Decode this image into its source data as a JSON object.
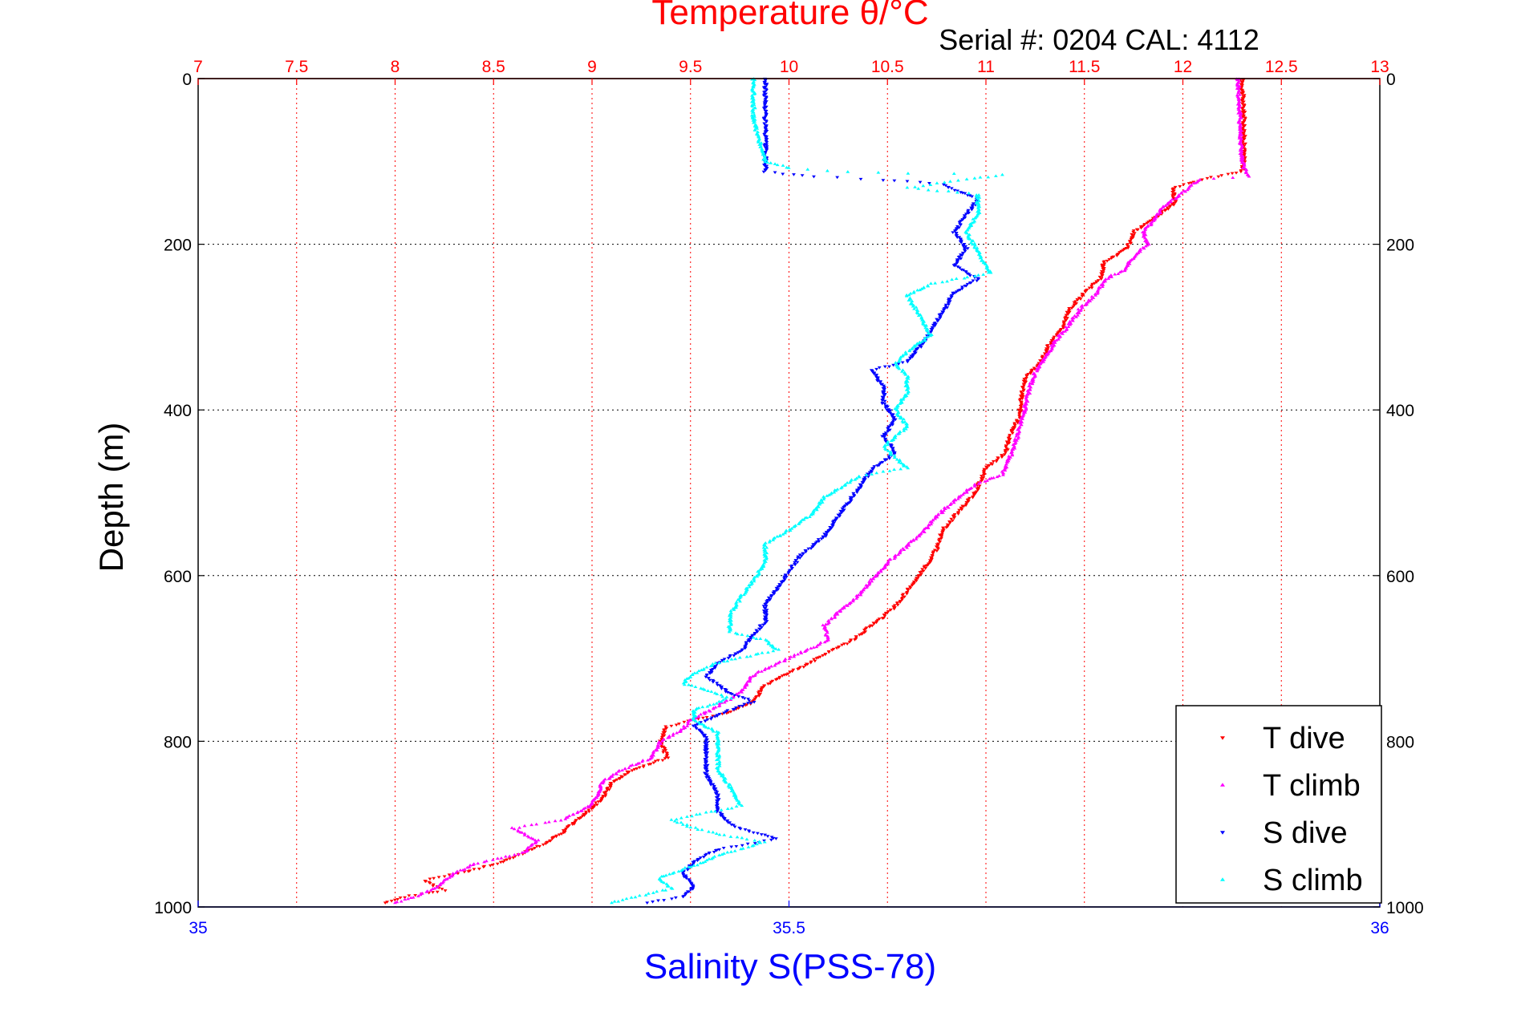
{
  "chart_data": {
    "type": "scatter",
    "title_top": "Temperature θ/°C",
    "subtitle": "Serial #: 0204  CAL: 4112",
    "xlabel_bottom": "Salinity S(PSS-78)",
    "ylabel": "Depth (m)",
    "x_top": {
      "label": "Temperature θ/°C",
      "lim": [
        7,
        13
      ],
      "ticks": [
        7,
        7.5,
        8,
        8.5,
        9,
        9.5,
        10,
        10.5,
        11,
        11.5,
        12,
        12.5,
        13
      ],
      "tick_labels": [
        "7",
        "7.5",
        "8",
        "8.5",
        "9",
        "9.5",
        "10",
        "10.5",
        "11",
        "11.5",
        "12",
        "12.5",
        "13"
      ]
    },
    "x_bottom": {
      "label": "Salinity S(PSS-78)",
      "lim": [
        35,
        36
      ],
      "ticks": [
        35,
        35.5,
        36
      ],
      "tick_labels": [
        "35",
        "35.5",
        "36"
      ]
    },
    "y": {
      "label": "Depth (m)",
      "lim": [
        0,
        1000
      ],
      "reversed": true,
      "ticks": [
        0,
        200,
        400,
        600,
        800,
        1000
      ],
      "tick_labels": [
        "0",
        "200",
        "400",
        "600",
        "800",
        "1000"
      ]
    },
    "grid": true,
    "legend_position": "bottom-right",
    "series": [
      {
        "name": "T dive",
        "color": "#ff0000",
        "axis": "temperature",
        "marker": "down-triangle",
        "points": [
          [
            12.3,
            0
          ],
          [
            12.31,
            50
          ],
          [
            12.31,
            100
          ],
          [
            12.3,
            112
          ],
          [
            12.1,
            122
          ],
          [
            11.95,
            132
          ],
          [
            11.96,
            150
          ],
          [
            11.85,
            170
          ],
          [
            11.75,
            185
          ],
          [
            11.72,
            205
          ],
          [
            11.6,
            222
          ],
          [
            11.58,
            242
          ],
          [
            11.5,
            258
          ],
          [
            11.42,
            280
          ],
          [
            11.38,
            305
          ],
          [
            11.32,
            322
          ],
          [
            11.28,
            342
          ],
          [
            11.2,
            362
          ],
          [
            11.18,
            385
          ],
          [
            11.17,
            408
          ],
          [
            11.12,
            432
          ],
          [
            11.1,
            452
          ],
          [
            11.0,
            470
          ],
          [
            10.95,
            498
          ],
          [
            10.88,
            518
          ],
          [
            10.78,
            545
          ],
          [
            10.75,
            568
          ],
          [
            10.7,
            588
          ],
          [
            10.62,
            612
          ],
          [
            10.55,
            635
          ],
          [
            10.45,
            655
          ],
          [
            10.32,
            678
          ],
          [
            10.18,
            695
          ],
          [
            10.05,
            712
          ],
          [
            9.88,
            732
          ],
          [
            9.82,
            752
          ],
          [
            9.7,
            765
          ],
          [
            9.38,
            782
          ],
          [
            9.35,
            800
          ],
          [
            9.38,
            820
          ],
          [
            9.2,
            835
          ],
          [
            9.1,
            850
          ],
          [
            9.05,
            870
          ],
          [
            8.95,
            890
          ],
          [
            8.85,
            910
          ],
          [
            8.75,
            925
          ],
          [
            8.55,
            945
          ],
          [
            8.35,
            958
          ],
          [
            8.15,
            968
          ],
          [
            8.25,
            980
          ],
          [
            8.05,
            988
          ],
          [
            7.95,
            995
          ]
        ]
      },
      {
        "name": "T climb",
        "color": "#ff00ff",
        "axis": "temperature",
        "marker": "up-triangle",
        "points": [
          [
            12.28,
            0
          ],
          [
            12.29,
            50
          ],
          [
            12.3,
            100
          ],
          [
            12.33,
            118
          ],
          [
            12.08,
            122
          ],
          [
            12.0,
            138
          ],
          [
            11.9,
            155
          ],
          [
            11.85,
            172
          ],
          [
            11.8,
            185
          ],
          [
            11.82,
            200
          ],
          [
            11.75,
            215
          ],
          [
            11.7,
            232
          ],
          [
            11.62,
            240
          ],
          [
            11.55,
            262
          ],
          [
            11.48,
            278
          ],
          [
            11.42,
            298
          ],
          [
            11.35,
            318
          ],
          [
            11.3,
            338
          ],
          [
            11.25,
            355
          ],
          [
            11.22,
            375
          ],
          [
            11.2,
            395
          ],
          [
            11.18,
            415
          ],
          [
            11.15,
            440
          ],
          [
            11.12,
            458
          ],
          [
            11.08,
            478
          ],
          [
            10.95,
            490
          ],
          [
            10.85,
            508
          ],
          [
            10.75,
            528
          ],
          [
            10.68,
            548
          ],
          [
            10.62,
            560
          ],
          [
            10.5,
            585
          ],
          [
            10.42,
            605
          ],
          [
            10.35,
            625
          ],
          [
            10.25,
            645
          ],
          [
            10.18,
            660
          ],
          [
            10.2,
            678
          ],
          [
            10.0,
            700
          ],
          [
            9.82,
            720
          ],
          [
            9.75,
            742
          ],
          [
            9.62,
            760
          ],
          [
            9.5,
            775
          ],
          [
            9.45,
            788
          ],
          [
            9.35,
            800
          ],
          [
            9.3,
            820
          ],
          [
            9.15,
            835
          ],
          [
            9.05,
            850
          ],
          [
            9.02,
            870
          ],
          [
            8.98,
            880
          ],
          [
            8.85,
            895
          ],
          [
            8.6,
            905
          ],
          [
            8.72,
            920
          ],
          [
            8.65,
            935
          ],
          [
            8.4,
            948
          ],
          [
            8.3,
            960
          ],
          [
            8.22,
            975
          ],
          [
            8.1,
            988
          ],
          [
            8.0,
            995
          ]
        ]
      },
      {
        "name": "S dive",
        "color": "#0000ff",
        "axis": "salinity",
        "marker": "down-triangle",
        "points": [
          [
            35.48,
            0
          ],
          [
            35.48,
            50
          ],
          [
            35.48,
            100
          ],
          [
            35.48,
            112
          ],
          [
            35.52,
            118
          ],
          [
            35.58,
            122
          ],
          [
            35.63,
            128
          ],
          [
            35.66,
            145
          ],
          [
            35.65,
            165
          ],
          [
            35.64,
            185
          ],
          [
            35.65,
            205
          ],
          [
            35.64,
            225
          ],
          [
            35.66,
            242
          ],
          [
            35.64,
            258
          ],
          [
            35.63,
            282
          ],
          [
            35.62,
            305
          ],
          [
            35.61,
            325
          ],
          [
            35.6,
            342
          ],
          [
            35.57,
            352
          ],
          [
            35.58,
            372
          ],
          [
            35.58,
            392
          ],
          [
            35.59,
            412
          ],
          [
            35.58,
            432
          ],
          [
            35.59,
            452
          ],
          [
            35.57,
            472
          ],
          [
            35.56,
            492
          ],
          [
            35.55,
            512
          ],
          [
            35.54,
            532
          ],
          [
            35.53,
            552
          ],
          [
            35.51,
            575
          ],
          [
            35.5,
            595
          ],
          [
            35.49,
            615
          ],
          [
            35.48,
            635
          ],
          [
            35.48,
            655
          ],
          [
            35.47,
            672
          ],
          [
            35.46,
            690
          ],
          [
            35.44,
            705
          ],
          [
            35.43,
            722
          ],
          [
            35.45,
            742
          ],
          [
            35.47,
            752
          ],
          [
            35.44,
            768
          ],
          [
            35.42,
            782
          ],
          [
            35.43,
            795
          ],
          [
            35.43,
            815
          ],
          [
            35.43,
            840
          ],
          [
            35.44,
            865
          ],
          [
            35.44,
            885
          ],
          [
            35.45,
            900
          ],
          [
            35.47,
            910
          ],
          [
            35.49,
            918
          ],
          [
            35.44,
            930
          ],
          [
            35.42,
            945
          ],
          [
            35.41,
            960
          ],
          [
            35.42,
            975
          ],
          [
            35.41,
            988
          ],
          [
            35.38,
            995
          ]
        ]
      },
      {
        "name": "S climb",
        "color": "#00ffff",
        "axis": "salinity",
        "marker": "up-triangle",
        "points": [
          [
            35.47,
            0
          ],
          [
            35.47,
            50
          ],
          [
            35.48,
            100
          ],
          [
            35.5,
            108
          ],
          [
            35.55,
            112
          ],
          [
            35.6,
            114
          ],
          [
            35.68,
            116
          ],
          [
            35.65,
            122
          ],
          [
            35.6,
            132
          ],
          [
            35.66,
            140
          ],
          [
            35.66,
            162
          ],
          [
            35.65,
            185
          ],
          [
            35.66,
            210
          ],
          [
            35.67,
            235
          ],
          [
            35.62,
            248
          ],
          [
            35.6,
            262
          ],
          [
            35.61,
            285
          ],
          [
            35.62,
            310
          ],
          [
            35.6,
            330
          ],
          [
            35.59,
            345
          ],
          [
            35.6,
            358
          ],
          [
            35.6,
            380
          ],
          [
            35.59,
            400
          ],
          [
            35.6,
            420
          ],
          [
            35.58,
            445
          ],
          [
            35.6,
            470
          ],
          [
            35.56,
            480
          ],
          [
            35.53,
            505
          ],
          [
            35.52,
            525
          ],
          [
            35.5,
            545
          ],
          [
            35.48,
            562
          ],
          [
            35.48,
            585
          ],
          [
            35.47,
            605
          ],
          [
            35.46,
            625
          ],
          [
            35.45,
            648
          ],
          [
            35.45,
            668
          ],
          [
            35.48,
            678
          ],
          [
            35.49,
            690
          ],
          [
            35.44,
            705
          ],
          [
            35.42,
            718
          ],
          [
            35.41,
            730
          ],
          [
            35.43,
            738
          ],
          [
            35.45,
            748
          ],
          [
            35.42,
            762
          ],
          [
            35.42,
            775
          ],
          [
            35.44,
            790
          ],
          [
            35.44,
            810
          ],
          [
            35.44,
            835
          ],
          [
            35.45,
            855
          ],
          [
            35.46,
            878
          ],
          [
            35.4,
            895
          ],
          [
            35.42,
            905
          ],
          [
            35.45,
            915
          ],
          [
            35.48,
            922
          ],
          [
            35.44,
            938
          ],
          [
            35.42,
            950
          ],
          [
            35.39,
            965
          ],
          [
            35.4,
            978
          ],
          [
            35.37,
            988
          ],
          [
            35.35,
            995
          ]
        ]
      }
    ],
    "legend": {
      "items": [
        {
          "label": "T dive",
          "color": "#ff0000",
          "marker": "down-triangle"
        },
        {
          "label": "T climb",
          "color": "#ff00ff",
          "marker": "up-triangle"
        },
        {
          "label": "S dive",
          "color": "#0000ff",
          "marker": "down-triangle"
        },
        {
          "label": "S climb",
          "color": "#00ffff",
          "marker": "up-triangle"
        }
      ]
    },
    "colors": {
      "temperature_axis": "#ff0000",
      "salinity_axis": "#0000ff",
      "depth_axis": "#000000"
    }
  }
}
